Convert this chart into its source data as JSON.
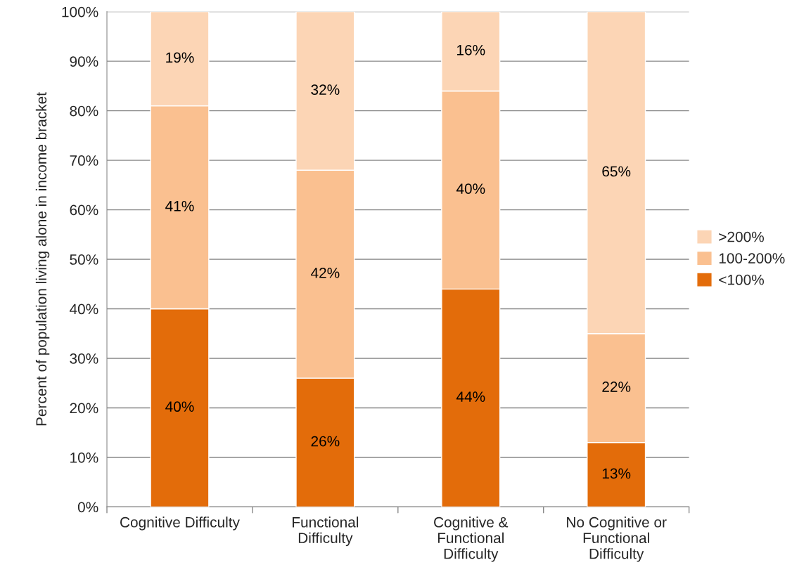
{
  "chart_data": {
    "type": "bar",
    "stacked": true,
    "ylabel": "Percent of population living alone in income bracket",
    "categories": [
      "Cognitive Difficulty",
      "Functional\nDifficulty",
      "Cognitive &\nFunctional\nDifficulty",
      "No Cognitive or\nFunctional\nDifficulty"
    ],
    "series": [
      {
        "name": "<100%",
        "color": "#e36c0a",
        "values": [
          40,
          26,
          44,
          13
        ],
        "value_labels": [
          "40%",
          "26%",
          "44%",
          "13%"
        ]
      },
      {
        "name": "100-200%",
        "color": "#fac090",
        "values": [
          41,
          42,
          40,
          22
        ],
        "value_labels": [
          "41%",
          "42%",
          "40%",
          "22%"
        ]
      },
      {
        "name": ">200%",
        "color": "#fcd5b5",
        "values": [
          19,
          32,
          16,
          65
        ],
        "value_labels": [
          "19%",
          "32%",
          "16%",
          "65%"
        ]
      }
    ],
    "ylim": [
      0,
      100
    ],
    "yticks": [
      {
        "value": 0,
        "label": "0%"
      },
      {
        "value": 10,
        "label": "10%"
      },
      {
        "value": 20,
        "label": "20%"
      },
      {
        "value": 30,
        "label": "30%"
      },
      {
        "value": 40,
        "label": "40%"
      },
      {
        "value": 50,
        "label": "50%"
      },
      {
        "value": 60,
        "label": "60%"
      },
      {
        "value": 70,
        "label": "70%"
      },
      {
        "value": 80,
        "label": "80%"
      },
      {
        "value": 90,
        "label": "90%"
      },
      {
        "value": 100,
        "label": "100%"
      }
    ],
    "grid": "y",
    "legend": "right"
  }
}
